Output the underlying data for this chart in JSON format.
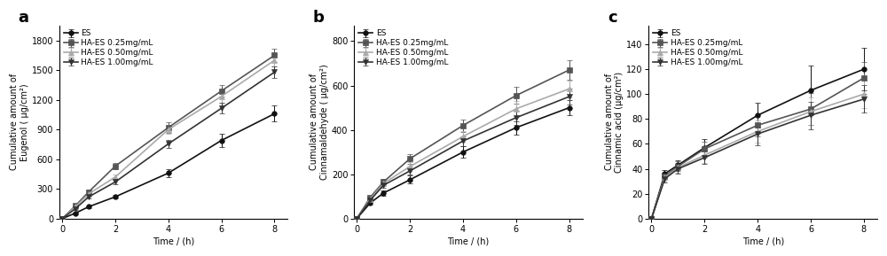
{
  "time": [
    0,
    0.5,
    1,
    2,
    4,
    6,
    8
  ],
  "panel_a": {
    "title": "a",
    "ylabel": "Cumulative amount of\nEugenol ( μg/cm²)",
    "xlabel": "Time / (h)",
    "ylim": [
      0,
      1950
    ],
    "yticks": [
      0,
      300,
      600,
      900,
      1200,
      1500,
      1800
    ],
    "xlim": [
      -0.1,
      8.5
    ],
    "xticks": [
      0,
      2,
      4,
      6,
      8
    ],
    "series": [
      {
        "label": "ES",
        "color": "#111111",
        "marker": "o",
        "markersize": 4,
        "lw": 1.2,
        "y": [
          0,
          55,
          120,
          220,
          460,
          790,
          1060
        ],
        "yerr": [
          0,
          10,
          15,
          20,
          40,
          65,
          80
        ]
      },
      {
        "label": "HA-ES 0.25mg/mL",
        "color": "#555555",
        "marker": "s",
        "markersize": 4,
        "lw": 1.2,
        "y": [
          0,
          130,
          270,
          530,
          920,
          1290,
          1650
        ],
        "yerr": [
          0,
          12,
          20,
          30,
          50,
          60,
          65
        ]
      },
      {
        "label": "HA-ES 0.50mg/mL",
        "color": "#aaaaaa",
        "marker": "^",
        "markersize": 4,
        "lw": 1.2,
        "y": [
          0,
          120,
          250,
          420,
          900,
          1235,
          1600
        ],
        "yerr": [
          0,
          12,
          18,
          28,
          45,
          60,
          60
        ]
      },
      {
        "label": "HA-ES 1.00mg/mL",
        "color": "#333333",
        "marker": "v",
        "markersize": 4,
        "lw": 1.2,
        "y": [
          0,
          100,
          220,
          370,
          755,
          1115,
          1480
        ],
        "yerr": [
          0,
          10,
          15,
          25,
          40,
          55,
          60
        ]
      }
    ]
  },
  "panel_b": {
    "title": "b",
    "ylabel": "Cumulative amount of\nCinnamaldehyde ( μg/cm²)",
    "xlabel": "Time / (h)",
    "ylim": [
      0,
      870
    ],
    "yticks": [
      0,
      200,
      400,
      600,
      800
    ],
    "xlim": [
      -0.1,
      8.5
    ],
    "xticks": [
      0,
      2,
      4,
      6,
      8
    ],
    "series": [
      {
        "label": "ES",
        "color": "#111111",
        "marker": "o",
        "markersize": 4,
        "lw": 1.2,
        "y": [
          0,
          70,
          115,
          175,
          300,
          410,
          500
        ],
        "yerr": [
          0,
          8,
          12,
          18,
          25,
          30,
          35
        ]
      },
      {
        "label": "HA-ES 0.25mg/mL",
        "color": "#555555",
        "marker": "s",
        "markersize": 4,
        "lw": 1.2,
        "y": [
          0,
          95,
          165,
          270,
          420,
          555,
          670
        ],
        "yerr": [
          0,
          8,
          15,
          22,
          28,
          38,
          42
        ]
      },
      {
        "label": "HA-ES 0.50mg/mL",
        "color": "#aaaaaa",
        "marker": "^",
        "markersize": 4,
        "lw": 1.2,
        "y": [
          0,
          88,
          158,
          235,
          370,
          495,
          585
        ],
        "yerr": [
          0,
          8,
          12,
          20,
          25,
          35,
          38
        ]
      },
      {
        "label": "HA-ES 1.00mg/mL",
        "color": "#333333",
        "marker": "v",
        "markersize": 4,
        "lw": 1.2,
        "y": [
          0,
          82,
          150,
          215,
          350,
          455,
          550
        ],
        "yerr": [
          0,
          8,
          12,
          18,
          22,
          32,
          35
        ]
      }
    ]
  },
  "panel_c": {
    "title": "c",
    "ylabel": "Cumulative amount of\nCinnamic acid (μg/cm²)",
    "xlabel": "Time / (h)",
    "ylim": [
      0,
      155
    ],
    "yticks": [
      0,
      20,
      40,
      60,
      80,
      100,
      120,
      140
    ],
    "xlim": [
      -0.1,
      8.5
    ],
    "xticks": [
      0,
      2,
      4,
      6,
      8
    ],
    "series": [
      {
        "label": "ES",
        "color": "#111111",
        "marker": "o",
        "markersize": 4,
        "lw": 1.2,
        "y": [
          0,
          36,
          43,
          57,
          83,
          103,
          120
        ],
        "yerr": [
          0,
          3,
          4,
          7,
          10,
          20,
          17
        ]
      },
      {
        "label": "HA-ES 0.25mg/mL",
        "color": "#555555",
        "marker": "s",
        "markersize": 4,
        "lw": 1.2,
        "y": [
          0,
          34,
          42,
          56,
          75,
          88,
          113
        ],
        "yerr": [
          0,
          3,
          4,
          6,
          9,
          13,
          13
        ]
      },
      {
        "label": "HA-ES 0.50mg/mL",
        "color": "#aaaaaa",
        "marker": "^",
        "markersize": 4,
        "lw": 1.2,
        "y": [
          0,
          33,
          41,
          51,
          70,
          86,
          100
        ],
        "yerr": [
          0,
          3,
          4,
          6,
          9,
          11,
          11
        ]
      },
      {
        "label": "HA-ES 1.00mg/mL",
        "color": "#333333",
        "marker": "v",
        "markersize": 4,
        "lw": 1.2,
        "y": [
          0,
          32,
          40,
          49,
          68,
          83,
          96
        ],
        "yerr": [
          0,
          3,
          4,
          5,
          9,
          11,
          11
        ]
      }
    ]
  },
  "bg_color": "#ffffff",
  "panel_label_fontsize": 13,
  "axis_label_fontsize": 7,
  "tick_fontsize": 7,
  "legend_fontsize": 6.5
}
